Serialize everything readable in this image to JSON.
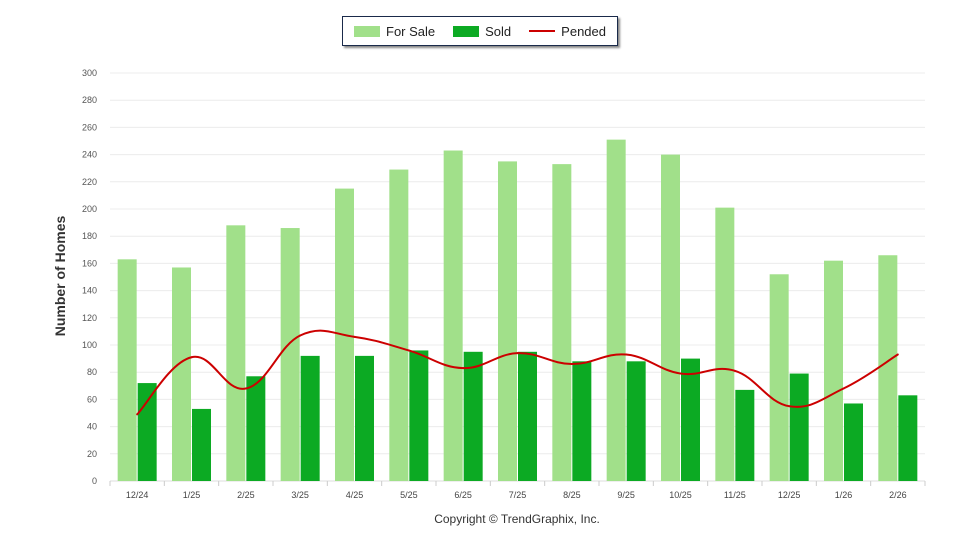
{
  "chart_data": {
    "type": "bar",
    "ylabel": "Number of Homes",
    "ylim": [
      0,
      300
    ],
    "ytick_step": 20,
    "grid": true,
    "legend_position": "top-center",
    "categories": [
      "12/24",
      "1/25",
      "2/25",
      "3/25",
      "4/25",
      "5/25",
      "6/25",
      "7/25",
      "8/25",
      "9/25",
      "10/25",
      "11/25",
      "12/25",
      "1/26",
      "2/26"
    ],
    "series": [
      {
        "name": "For Sale",
        "kind": "bar",
        "color": "#a1e08a",
        "values": [
          163,
          157,
          188,
          186,
          215,
          229,
          243,
          235,
          233,
          251,
          240,
          201,
          152,
          162,
          166
        ]
      },
      {
        "name": "Sold",
        "kind": "bar",
        "color": "#0caa23",
        "values": [
          72,
          53,
          77,
          92,
          92,
          96,
          95,
          95,
          88,
          88,
          90,
          67,
          79,
          57,
          63
        ]
      },
      {
        "name": "Pended",
        "kind": "line",
        "color": "#cc0000",
        "values": [
          49,
          91,
          68,
          107,
          106,
          96,
          83,
          94,
          86,
          93,
          79,
          81,
          55,
          68,
          93
        ]
      }
    ]
  },
  "copyright": "Copyright © TrendGraphix, Inc."
}
